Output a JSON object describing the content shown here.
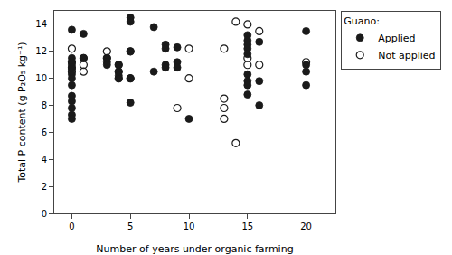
{
  "chart_data": {
    "type": "scatter",
    "xlabel": "Number of years under organic farming",
    "ylabel": "Total P content (g P₂O₅ kg⁻¹)",
    "xlim": [
      -1.5,
      22.5
    ],
    "ylim": [
      0,
      15
    ],
    "xticks": [
      0,
      5,
      10,
      15,
      20
    ],
    "yticks": [
      0,
      2,
      4,
      6,
      8,
      10,
      12,
      14
    ],
    "grid": false,
    "legend": "right",
    "legend_title": "Guano:",
    "series": [
      {
        "name": "Applied",
        "color": "#1a1a1a",
        "marker": "filled",
        "x": [
          0,
          0,
          0,
          0,
          0,
          0,
          0,
          0,
          0,
          0,
          0,
          0,
          0,
          1,
          1,
          3,
          3,
          3,
          4,
          4,
          4,
          4,
          5,
          5,
          5,
          5,
          5,
          7,
          7,
          8,
          8,
          8,
          8,
          9,
          9,
          9,
          10,
          15,
          15,
          15,
          15,
          15,
          15,
          15,
          15,
          15,
          16,
          16,
          16,
          20,
          20,
          20,
          20
        ],
        "values": [
          13.6,
          11.5,
          11.2,
          11.0,
          10.7,
          10.3,
          10.0,
          9.5,
          8.7,
          8.3,
          7.8,
          7.3,
          7.0,
          13.3,
          11.5,
          11.5,
          11.2,
          11.0,
          11.0,
          10.5,
          10.2,
          10.0,
          14.5,
          14.2,
          12.0,
          10.0,
          8.2,
          13.8,
          10.5,
          12.5,
          12.2,
          11.0,
          10.8,
          12.3,
          11.2,
          10.8,
          7.0,
          13.2,
          12.8,
          12.5,
          12.2,
          11.8,
          10.3,
          9.8,
          9.5,
          8.8,
          12.7,
          9.8,
          8.0,
          13.5,
          11.0,
          10.5,
          9.5
        ]
      },
      {
        "name": "Not applied",
        "color": "#1a1a1a",
        "marker": "open",
        "x": [
          0,
          0,
          0,
          0,
          1,
          1,
          1,
          3,
          3,
          4,
          4,
          4,
          5,
          5,
          9,
          10,
          10,
          13,
          13,
          13,
          13,
          14,
          14,
          15,
          15,
          15,
          16,
          16,
          20
        ],
        "values": [
          12.2,
          11.2,
          10.8,
          10.5,
          11.5,
          11.0,
          10.5,
          12.0,
          11.5,
          11.0,
          10.5,
          10.0,
          12.0,
          10.0,
          7.8,
          12.2,
          10.0,
          12.2,
          8.5,
          7.8,
          7.0,
          14.2,
          5.2,
          14.0,
          11.5,
          11.0,
          13.5,
          11.0,
          11.2
        ]
      }
    ]
  }
}
